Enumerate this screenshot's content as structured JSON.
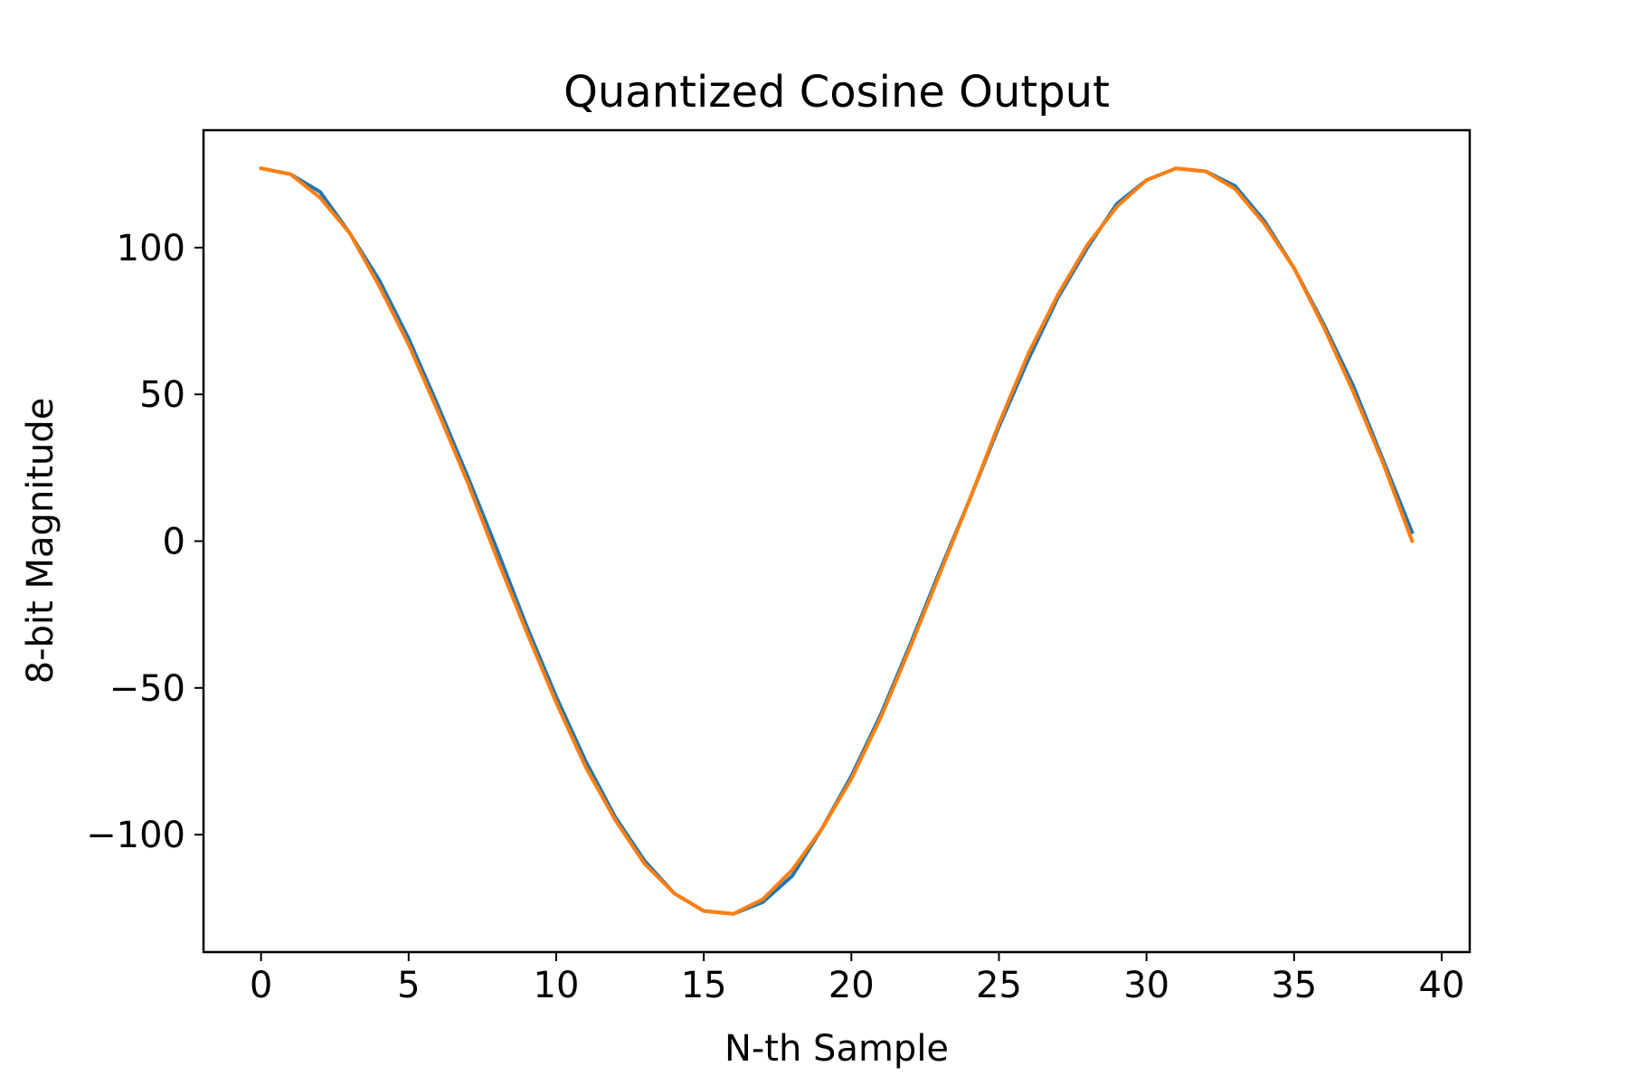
{
  "chart_data": {
    "type": "line",
    "title": "Quantized Cosine Output",
    "xlabel": "N-th Sample",
    "ylabel": "8-bit Magnitude",
    "xlim": [
      -1.95,
      40.95
    ],
    "ylim": [
      -140,
      140
    ],
    "xticks": [
      0,
      5,
      10,
      15,
      20,
      25,
      30,
      35,
      40
    ],
    "xtick_labels": [
      "0",
      "5",
      "10",
      "15",
      "20",
      "25",
      "30",
      "35",
      "40"
    ],
    "yticks": [
      100,
      50,
      0,
      -50,
      -100
    ],
    "ytick_labels": [
      "100",
      "50",
      "0",
      "−50",
      "−100"
    ],
    "grid": false,
    "x": [
      0,
      1,
      2,
      3,
      4,
      5,
      6,
      7,
      8,
      9,
      10,
      11,
      12,
      13,
      14,
      15,
      16,
      17,
      18,
      19,
      20,
      21,
      22,
      23,
      24,
      25,
      26,
      27,
      28,
      29,
      30,
      31,
      32,
      33,
      34,
      35,
      36,
      37,
      38,
      39
    ],
    "series": [
      {
        "color": "#1f77b4",
        "values": [
          127,
          125,
          119,
          105,
          89,
          69,
          46,
          22,
          -3,
          -29,
          -53,
          -75,
          -94,
          -109,
          -120,
          -126,
          -127,
          -123,
          -114,
          -98,
          -80,
          -59,
          -35,
          -10,
          14,
          39,
          62,
          83,
          100,
          115,
          123,
          127,
          126,
          121,
          109,
          93,
          74,
          53,
          28,
          3
        ]
      },
      {
        "color": "#ff7f0e",
        "values": [
          127,
          125,
          117,
          105,
          87,
          67,
          44,
          20,
          -6,
          -31,
          -55,
          -77,
          -95,
          -110,
          -120,
          -126,
          -127,
          -122,
          -112,
          -98,
          -81,
          -60,
          -36,
          -11,
          14,
          40,
          64,
          84,
          101,
          114,
          123,
          127,
          126,
          120,
          108,
          93,
          73,
          51,
          27,
          0
        ]
      }
    ]
  }
}
